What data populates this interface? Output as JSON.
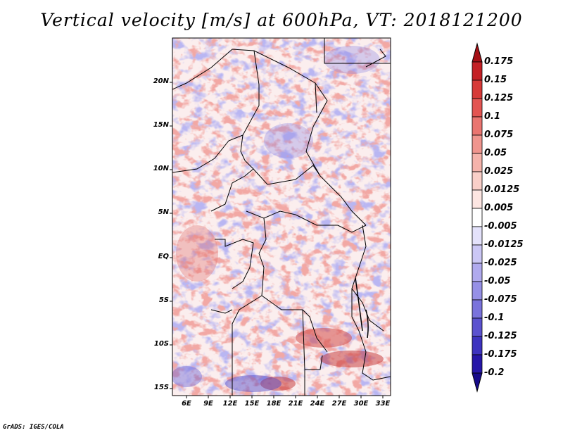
{
  "title": "Vertical velocity [m/s] at 600hPa, VT: 2018121200",
  "credit": "GrADS: IGES/COLA",
  "map": {
    "lat_labels": [
      "20N",
      "15N",
      "10N",
      "5N",
      "EQ",
      "5S",
      "10S",
      "15S"
    ],
    "lon_labels": [
      "6E",
      "9E",
      "12E",
      "15E",
      "18E",
      "21E",
      "24E",
      "27E",
      "30E",
      "33E"
    ],
    "lat_range": [
      -16,
      24.5
    ],
    "lon_range": [
      4,
      34
    ]
  },
  "colorbar": {
    "levels": [
      "0.175",
      "0.15",
      "0.125",
      "0.1",
      "0.075",
      "0.05",
      "0.025",
      "0.0125",
      "0.005",
      "-0.005",
      "-0.0125",
      "-0.025",
      "-0.05",
      "-0.075",
      "-0.1",
      "-0.125",
      "-0.175",
      "-0.2"
    ],
    "colors": [
      "#a50f15",
      "#c42025",
      "#d73a38",
      "#e35552",
      "#ea7570",
      "#f0958e",
      "#f5b3ab",
      "#f9cfc8",
      "#fde6e2",
      "#ffffff",
      "#e4e2fb",
      "#cbc7f5",
      "#b0aaee",
      "#9690e6",
      "#7a73dc",
      "#5b52cf",
      "#3d33bf",
      "#2616a8",
      "#170a8a"
    ]
  }
}
